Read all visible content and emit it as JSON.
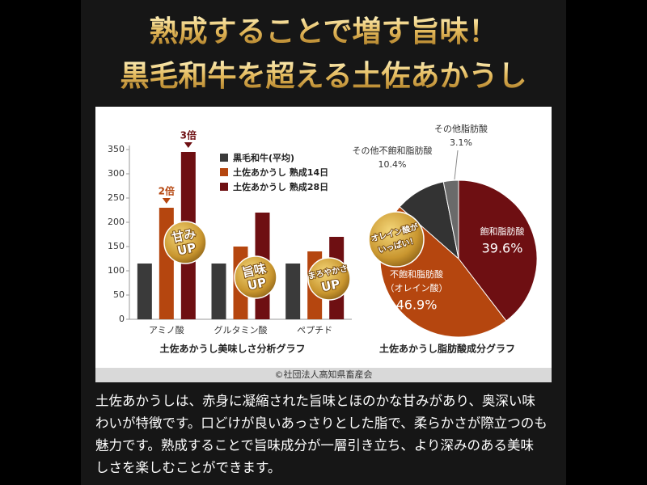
{
  "header": {
    "lines": [
      "熟成することで増す旨味！",
      "黒毛和牛を超える土佐あかうし"
    ]
  },
  "chart_data": [
    {
      "type": "bar",
      "title": "土佐あかうし美味しさ分析グラフ",
      "categories": [
        "アミノ酸",
        "グルタミン酸",
        "ペプチド"
      ],
      "series": [
        {
          "name": "黒毛和牛(平均)",
          "color": "#3a3a3a",
          "values": [
            115,
            115,
            115
          ]
        },
        {
          "name": "土佐あかうし 熟成14日",
          "color": "#b5460f",
          "values": [
            230,
            150,
            140
          ]
        },
        {
          "name": "土佐あかうし 熟成28日",
          "color": "#6e0f12",
          "values": [
            345,
            220,
            170
          ]
        }
      ],
      "ylim": [
        0,
        350
      ],
      "yticks": [
        0,
        50,
        100,
        150,
        200,
        250,
        300,
        350
      ],
      "annotations": [
        "2倍",
        "3倍"
      ],
      "badges": [
        [
          "甘み",
          "UP"
        ],
        [
          "旨味",
          "UP"
        ],
        [
          "まろやかさ",
          "UP"
        ]
      ]
    },
    {
      "type": "pie",
      "title": "土佐あかうし脂肪酸成分グラフ",
      "labels": [
        [
          "飽和脂肪酸"
        ],
        [
          "不飽和脂肪酸",
          "（オレイン酸）"
        ],
        [
          "その他不飽和脂肪酸"
        ],
        [
          "その他脂肪酸"
        ]
      ],
      "values": [
        39.6,
        46.9,
        10.4,
        3.1
      ],
      "value_labels": [
        "39.6%",
        "46.9%",
        "10.4%",
        "3.1%"
      ],
      "colors": [
        "#6e0f12",
        "#b5460f",
        "#333333",
        "#6a6a6a"
      ],
      "badge": [
        "オレイン酸が",
        "いっぱい！"
      ]
    }
  ],
  "credit": "©社団法人高知県畜産会",
  "body": [
    "土佐あかうしは、赤身に凝縮された旨味とほのかな甘みがあり、奥深い味",
    "わいが特徴です。口どけが良いあっさりとした脂で、柔らかさが際立つのも",
    "魅力です。熟成することで旨味成分が一層引き立ち、より深みのある美味",
    "しさを楽しむことができます。"
  ]
}
